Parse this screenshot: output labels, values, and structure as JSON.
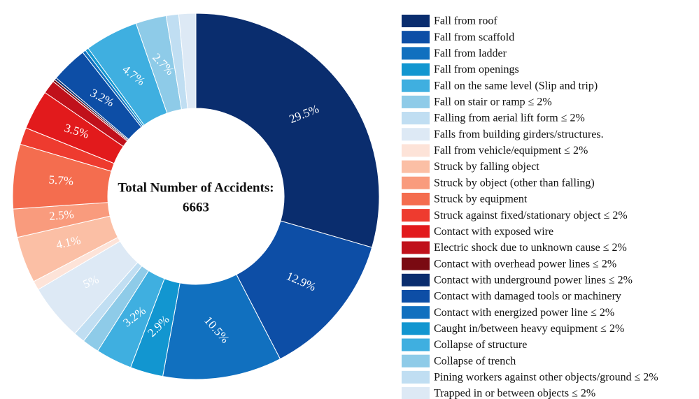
{
  "chart_data": {
    "type": "donut",
    "center_title": "Total Number of Accidents:",
    "total": 6663,
    "categories": [
      "Fall from roof",
      "Fall from scaffold",
      "Fall from ladder",
      "Fall from openings",
      "Fall on the same level (Slip and trip)",
      "Fall on stair or ramp ≤ 2%",
      "Falling from aerial lift form ≤ 2%",
      "Falls from building girders/structures.",
      "Fall from vehicle/equipment ≤ 2%",
      "Struck by falling object",
      "Struck by object (other than falling)",
      "Struck by equipment",
      "Struck against fixed/stationary object ≤ 2%",
      "Contact with exposed wire",
      "Electric shock due to unknown cause ≤ 2%",
      "Contact with overhead power lines ≤ 2%",
      "Contact with underground power lines ≤ 2%",
      "Contact with damaged tools or machinery",
      "Contact with energized power line ≤ 2%",
      "Caught in/between heavy equipment ≤ 2%",
      "Collapse of structure",
      "Collapse of trench",
      "Pining workers against other objects/ground ≤ 2%",
      "Trapped in or between objects ≤ 2%"
    ],
    "values": [
      29.5,
      12.9,
      10.5,
      2.9,
      3.2,
      1.5,
      1.0,
      5,
      0.8,
      4.1,
      2.5,
      5.7,
      1.5,
      3.5,
      1.2,
      0.2,
      0.2,
      3.2,
      0.3,
      0.3,
      4.7,
      2.7,
      1.1,
      1.5
    ],
    "value_labels": [
      "29.5%",
      "12.9%",
      "10.5%",
      "2.9%",
      "3.2%",
      null,
      null,
      "5%",
      null,
      "4.1%",
      "2.5%",
      "5.7%",
      null,
      "3.5%",
      null,
      null,
      null,
      "3.2%",
      null,
      null,
      "4.7%",
      "2.7%",
      null,
      null
    ],
    "colors": [
      "#0a2d6e",
      "#0d4ea6",
      "#1170bf",
      "#1296d0",
      "#3fafe0",
      "#8ecbe8",
      "#c0def2",
      "#dde9f5",
      "#fde3d8",
      "#fbbfa5",
      "#f99b7d",
      "#f46d4f",
      "#ee3b2f",
      "#e21a1c",
      "#c0111b",
      "#7a0a12",
      "#0a2d6e",
      "#0d4ea6",
      "#1170bf",
      "#1296d0",
      "#3fafe0",
      "#8ecbe8",
      "#c0def2",
      "#dde9f5"
    ]
  }
}
